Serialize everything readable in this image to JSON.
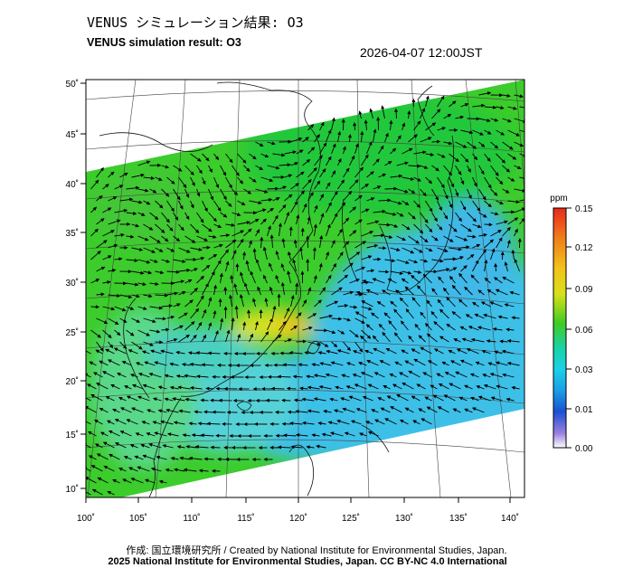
{
  "header": {
    "title_jp": "VENUS シミュレーション結果: O3",
    "title_en": "VENUS simulation result: O3",
    "timestamp": "2026-04-07 12:00JST"
  },
  "map": {
    "lon_ticks": [
      "100˚",
      "105˚",
      "110˚",
      "115˚",
      "120˚",
      "125˚",
      "130˚",
      "135˚",
      "140˚"
    ],
    "lat_ticks": [
      "50˚",
      "45˚",
      "40˚",
      "35˚",
      "30˚",
      "25˚",
      "20˚",
      "15˚",
      "10˚"
    ]
  },
  "colorbar": {
    "unit": "ppm",
    "labels": [
      "0.15",
      "0.12",
      "0.09",
      "0.06",
      "0.03",
      "0.01",
      "0.00"
    ],
    "colors": [
      "#e8281e",
      "#f07a1a",
      "#f2c21a",
      "#e8e81a",
      "#7ad21a",
      "#1ac81a",
      "#1ad2a0",
      "#1ad2e6",
      "#1a96e6",
      "#1a46d2",
      "#7a5ad2",
      "#ffffff"
    ]
  },
  "footer": {
    "credit_line": "作成: 国立環境研究所 / Created by National Institute for Environmental Studies, Japan.",
    "copyright_line": "2025 National Institute for Environmental Studies, Japan. CC BY-NC 4.0 International"
  }
}
